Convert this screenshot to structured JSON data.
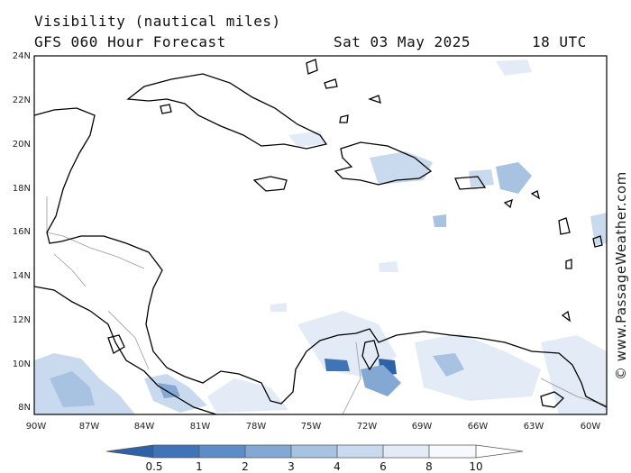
{
  "header": {
    "title": "Visibility (nautical miles)",
    "model": "GFS 060 Hour Forecast",
    "date": "Sat 03 May 2025",
    "time": "18 UTC"
  },
  "axes": {
    "lat_labels": [
      "24N",
      "22N",
      "20N",
      "18N",
      "16N",
      "14N",
      "12N",
      "10N",
      "8N"
    ],
    "lon_labels": [
      "90W",
      "87W",
      "84W",
      "81W",
      "78W",
      "75W",
      "72W",
      "69W",
      "66W",
      "63W",
      "60W"
    ]
  },
  "colorbar": {
    "labels": [
      "0.5",
      "1",
      "2",
      "3",
      "4",
      "6",
      "8",
      "10"
    ],
    "colors": [
      "#2e62a8",
      "#3f74b9",
      "#5d8cc6",
      "#83a8d4",
      "#a8c2e1",
      "#c9daee",
      "#e3ecf6",
      "#f6f9fd"
    ]
  },
  "credit": "© www.PassageWeather.com"
}
